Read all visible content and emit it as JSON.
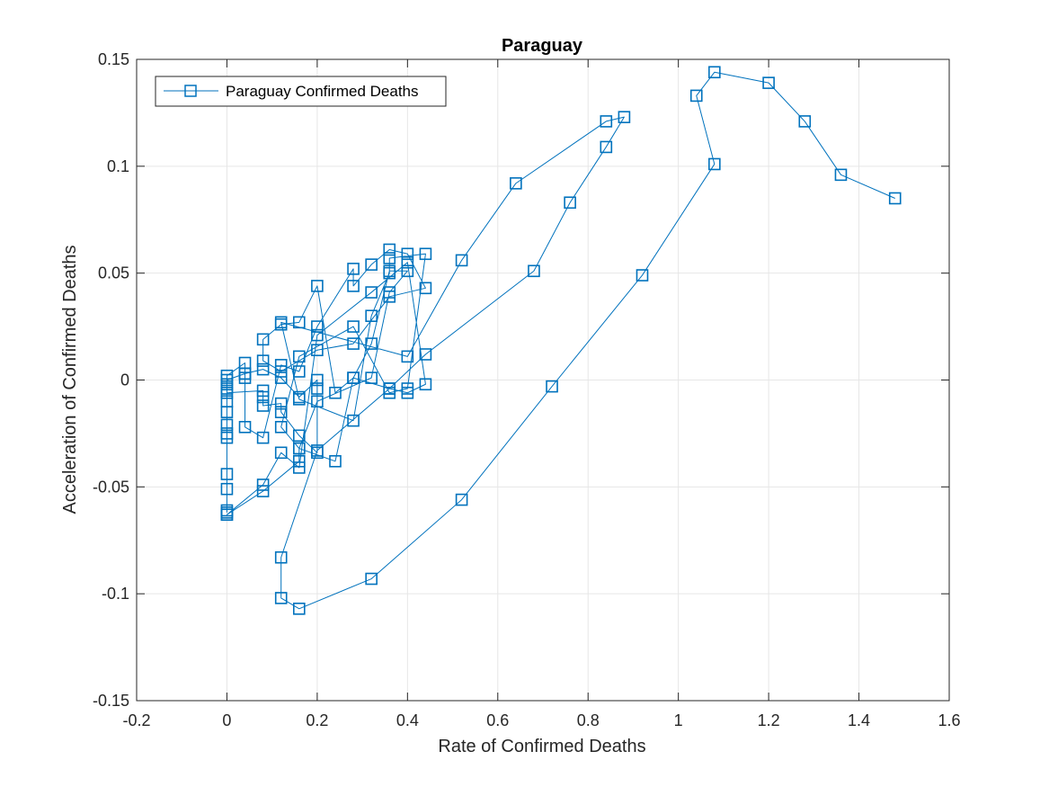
{
  "chart_data": {
    "type": "line",
    "title": "Paraguay",
    "xlabel": "Rate of Confirmed Deaths",
    "ylabel": "Acceleration of Confirmed Deaths",
    "xlim": [
      -0.2,
      1.6
    ],
    "ylim": [
      -0.15,
      0.15
    ],
    "xticks": [
      -0.2,
      0,
      0.2,
      0.4,
      0.6,
      0.8,
      1,
      1.2,
      1.4,
      1.6
    ],
    "xtick_labels": [
      "-0.2",
      "0",
      "0.2",
      "0.4",
      "0.6",
      "0.8",
      "1",
      "1.2",
      "1.4",
      "1.6"
    ],
    "yticks": [
      -0.15,
      -0.1,
      -0.05,
      0,
      0.05,
      0.1,
      0.15
    ],
    "ytick_labels": [
      "-0.15",
      "-0.1",
      "-0.05",
      "0",
      "0.05",
      "0.1",
      "0.15"
    ],
    "grid": true,
    "legend_position": "top-left",
    "series": [
      {
        "name": "Paraguay Confirmed Deaths",
        "color": "#0072BD",
        "marker": "square",
        "x": [
          0,
          0,
          0,
          0,
          0,
          0,
          0,
          0,
          0,
          0,
          0,
          0.04,
          0.04,
          0.04,
          0,
          0,
          0,
          0.08,
          0.08,
          0.08,
          0.12,
          0.12,
          0.16,
          0.2,
          0.2,
          0.2,
          0.16,
          0.12,
          0.08,
          0.04,
          0.04,
          0.08,
          0.12,
          0.16,
          0.2,
          0.28,
          0.28,
          0.32,
          0.36,
          0.4,
          0.44,
          0.36,
          0.28,
          0.2,
          0.12,
          0.08,
          0.08,
          0.12,
          0.16,
          0.2,
          0.24,
          0.28,
          0.36,
          0.4,
          0.44,
          0.4,
          0.32,
          0.2,
          0.16,
          0.12,
          0.08,
          0,
          0,
          0.08,
          0.16,
          0.16,
          0.2,
          0.32,
          0.36,
          0.4,
          0.36,
          0.32,
          0.28,
          0.24,
          0.16,
          0.12,
          0.16,
          0.28,
          0.36,
          0.4,
          0.44,
          0.36,
          0.36,
          0.32,
          0.28,
          0.16,
          0.12,
          0.4,
          0.52,
          0.64,
          0.84,
          0.88,
          0.84,
          0.76,
          0.68,
          0.44,
          0.36,
          0.2,
          0.12,
          0.12,
          0.16,
          0.32,
          0.52,
          0.72,
          0.92,
          1.08,
          1.04,
          1.08,
          1.2,
          1.28,
          1.36,
          1.48
        ],
        "y": [
          -0.062,
          -0.061,
          -0.051,
          -0.044,
          -0.027,
          -0.025,
          -0.021,
          -0.015,
          -0.01,
          -0.004,
          0,
          0.003,
          0.001,
          0.008,
          0.002,
          -0.002,
          -0.006,
          -0.005,
          -0.008,
          -0.012,
          -0.011,
          -0.015,
          -0.026,
          -0.034,
          -0.004,
          0,
          -0.008,
          0.001,
          0.005,
          0.003,
          -0.022,
          -0.027,
          0.007,
          0.004,
          0.025,
          0.052,
          0.044,
          0.054,
          0.061,
          0.059,
          0.043,
          0.039,
          0.017,
          0.014,
          0.004,
          0.009,
          0.019,
          0.026,
          0.027,
          0.044,
          -0.006,
          0.001,
          -0.004,
          -0.006,
          -0.002,
          0.055,
          0.041,
          0.021,
          -0.041,
          -0.034,
          -0.049,
          -0.063,
          -0.063,
          -0.052,
          -0.038,
          -0.032,
          -0.01,
          0.001,
          0.041,
          0.051,
          0.051,
          0.017,
          0.001,
          -0.038,
          -0.032,
          -0.022,
          0.011,
          0.025,
          -0.006,
          -0.004,
          0.059,
          0.057,
          0.05,
          0.03,
          -0.019,
          -0.009,
          0.027,
          0.011,
          0.056,
          0.092,
          0.121,
          0.123,
          0.109,
          0.083,
          0.051,
          0.012,
          -0.004,
          -0.033,
          -0.083,
          -0.102,
          -0.107,
          -0.093,
          -0.056,
          -0.003,
          0.049,
          0.101,
          0.133,
          0.144,
          0.139,
          0.121,
          0.096,
          0.085
        ]
      }
    ]
  }
}
